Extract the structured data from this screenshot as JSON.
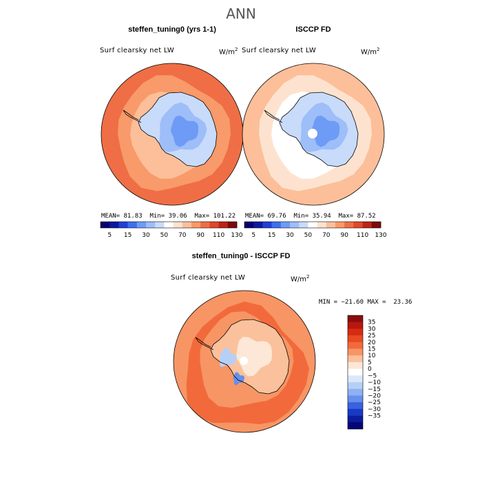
{
  "page": {
    "title": "ANN"
  },
  "chart_data": [
    {
      "type": "heatmap",
      "id": "model",
      "title": "steffen_tuning0 (yrs 1-1)",
      "variable": "Surf clearsky net LW",
      "units_base": "W/m",
      "units_exp": "2",
      "stats": {
        "mean_label": "MEAN=",
        "mean": "81.83",
        "min_label": "Min=",
        "min": "39.06",
        "max_label": "Max=",
        "max": "101.22"
      },
      "colorbar_ticks": [
        "5",
        "15",
        "30",
        "50",
        "70",
        "90",
        "110",
        "130"
      ],
      "mean_field": 81.83,
      "ocean_level_index": 11,
      "land_level_index": 4
    },
    {
      "type": "heatmap",
      "id": "obs",
      "title": "ISCCP FD",
      "variable": "Surf clearsky net LW",
      "units_base": "W/m",
      "units_exp": "2",
      "stats": {
        "mean_label": "MEAN=",
        "mean": "69.76",
        "min_label": "Min=",
        "min": "35.94",
        "max_label": "Max=",
        "max": "87.52"
      },
      "colorbar_ticks": [
        "5",
        "15",
        "30",
        "50",
        "70",
        "90",
        "110",
        "130"
      ],
      "mean_field": 69.76,
      "ocean_level_index": 9,
      "land_level_index": 4
    },
    {
      "type": "heatmap",
      "id": "diff",
      "title": "steffen_tuning0 - ISCCP FD",
      "variable": "Surf clearsky net LW",
      "units_base": "W/m",
      "units_exp": "2",
      "range_text": "MIN = −21.60 MAX =  23.36",
      "min": -21.6,
      "max": 23.36,
      "colorbar_ticks": [
        "35",
        "30",
        "25",
        "20",
        "15",
        "10",
        "5",
        "0",
        "−5",
        "−10",
        "−15",
        "−20",
        "−25",
        "−30",
        "−35"
      ]
    }
  ],
  "colors": {
    "abs_scale": [
      "#08006e",
      "#0b1a9e",
      "#1f3fd6",
      "#3d6ff0",
      "#6e9bf5",
      "#9dbef8",
      "#c8dbfb",
      "#ffffff",
      "#fde3cf",
      "#fcbf99",
      "#f89a6a",
      "#ef6e45",
      "#e0482a",
      "#bc2418",
      "#7d0a0a"
    ],
    "diff_scale": [
      "#8a0d0d",
      "#b8170f",
      "#d52c12",
      "#e84a22",
      "#f26a3c",
      "#f79565",
      "#fbc19c",
      "#fde7d6",
      "#ffffff",
      "#dce8fa",
      "#b6cff7",
      "#8eb1f2",
      "#6690ea",
      "#3a62de",
      "#1939c4",
      "#0b1c9c",
      "#060774"
    ],
    "coast": "#000000"
  }
}
